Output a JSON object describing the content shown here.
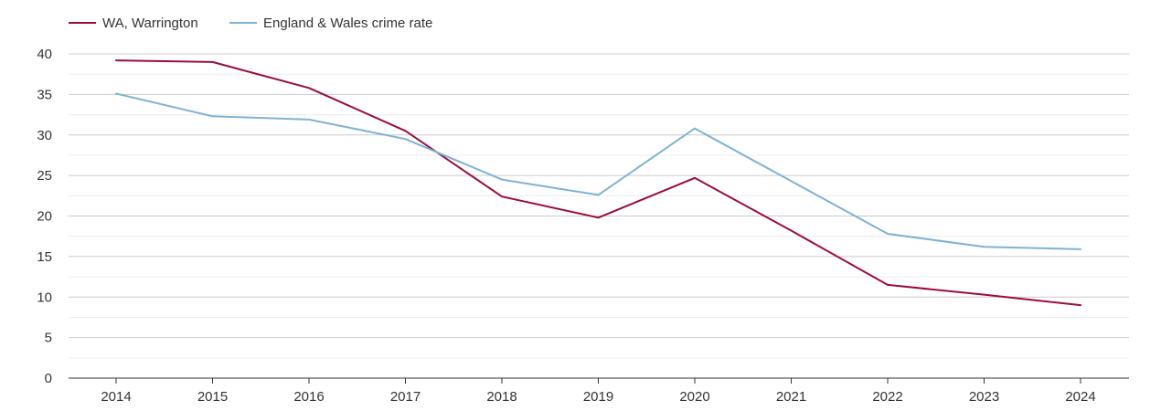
{
  "chart_data": {
    "type": "line",
    "title": "",
    "xlabel": "",
    "ylabel": "",
    "categories": [
      "2014",
      "2015",
      "2016",
      "2017",
      "2018",
      "2019",
      "2020",
      "2021",
      "2022",
      "2023",
      "2024"
    ],
    "series": [
      {
        "name": "WA, Warrington",
        "color": "#9b0d3a",
        "values": [
          39.2,
          39.0,
          35.8,
          30.5,
          22.4,
          19.8,
          24.7,
          18.2,
          11.5,
          10.3,
          9.0
        ]
      },
      {
        "name": "England & Wales crime rate",
        "color": "#7fb2d4",
        "values": [
          35.1,
          32.3,
          31.9,
          29.5,
          24.5,
          22.6,
          30.8,
          24.3,
          17.8,
          16.2,
          15.9
        ]
      }
    ],
    "ylim": [
      0,
      40
    ],
    "yticks": [
      "0",
      "5",
      "10",
      "15",
      "20",
      "25",
      "30",
      "35",
      "40"
    ],
    "grid": true,
    "legend_position": "top-left"
  }
}
